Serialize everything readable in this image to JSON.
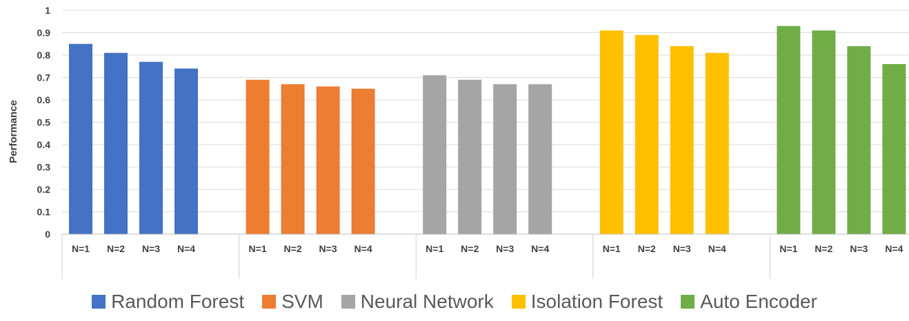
{
  "chart_data": {
    "type": "bar",
    "ylabel": "Performance",
    "ylim": [
      0,
      1
    ],
    "yticks": [
      "0",
      "0.1",
      "0.2",
      "0.3",
      "0.4",
      "0.5",
      "0.6",
      "0.7",
      "0.8",
      "0.9",
      "1"
    ],
    "categories": [
      "N=1",
      "N=2",
      "N=3",
      "N=4"
    ],
    "grid": true,
    "legend_position": "bottom",
    "series": [
      {
        "name": "Random Forest",
        "color": "#4472C4",
        "values": [
          0.85,
          0.81,
          0.77,
          0.74
        ]
      },
      {
        "name": "SVM",
        "color": "#ED7D31",
        "values": [
          0.69,
          0.67,
          0.66,
          0.65
        ]
      },
      {
        "name": "Neural Network",
        "color": "#A5A5A5",
        "values": [
          0.71,
          0.69,
          0.67,
          0.67
        ]
      },
      {
        "name": "Isolation Forest",
        "color": "#FFC000",
        "values": [
          0.91,
          0.89,
          0.84,
          0.81
        ]
      },
      {
        "name": "Auto Encoder",
        "color": "#70AD47",
        "values": [
          0.93,
          0.91,
          0.84,
          0.76
        ]
      }
    ]
  }
}
